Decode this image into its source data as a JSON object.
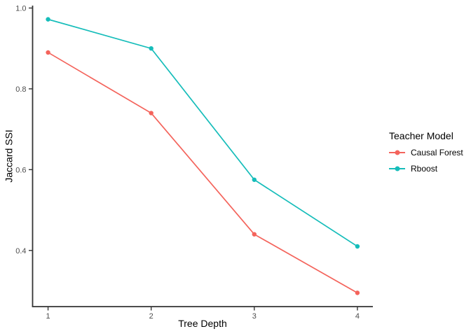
{
  "figure": {
    "background": "#ffffff"
  },
  "chart_data": {
    "type": "line",
    "xlabel": "Tree Depth",
    "ylabel": "Jaccard SSI",
    "legend_title": "Teacher Model",
    "legend_position": "right",
    "grid": "off",
    "x": [
      1,
      2,
      3,
      4
    ],
    "xlim": [
      0.85,
      4.15
    ],
    "ylim": [
      0.261,
      1.006
    ],
    "xticks": [
      "1",
      "2",
      "3",
      "4"
    ],
    "xtick_values": [
      1,
      2,
      3,
      4
    ],
    "yticks": [
      "0.4",
      "0.6",
      "0.8",
      "1.0"
    ],
    "ytick_values": [
      0.4,
      0.6,
      0.8,
      1.0
    ],
    "series": [
      {
        "name": "Causal Forest",
        "color": "#F4645C",
        "values": [
          0.89,
          0.74,
          0.44,
          0.295
        ]
      },
      {
        "name": "Rboost",
        "color": "#16BDBA",
        "values": [
          0.972,
          0.9,
          0.575,
          0.41
        ]
      }
    ],
    "axis_color": "#333333",
    "tick_label_color": "#4d4d4d"
  }
}
